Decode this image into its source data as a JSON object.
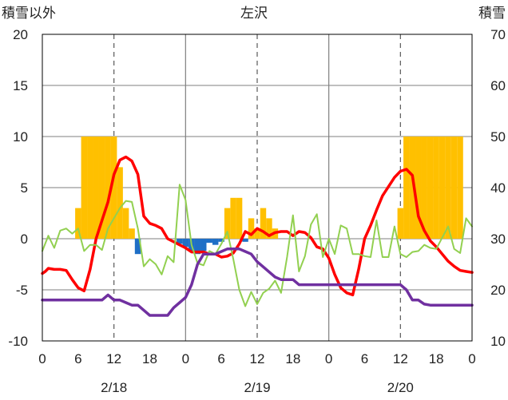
{
  "chart_data": {
    "type": "line",
    "title": "左沢",
    "ylabel_left": "積雪以外",
    "ylabel_right": "積雪",
    "ylim_left": [
      -10,
      20
    ],
    "ylim_right": [
      10,
      70
    ],
    "yticks_left": [
      "-10",
      "-5",
      "0",
      "5",
      "10",
      "15",
      "20"
    ],
    "yticks_right": [
      "10",
      "20",
      "30",
      "40",
      "50",
      "60",
      "70"
    ],
    "xlim_hours": [
      0,
      72
    ],
    "xticks": [
      "0",
      "6",
      "12",
      "18",
      "0",
      "6",
      "12",
      "18",
      "0",
      "6",
      "12",
      "18",
      "0"
    ],
    "day_labels": [
      "2/18",
      "2/19",
      "2/20"
    ],
    "grid": "dashed at 12:00 of each day, solid at day boundaries, solid horizontal lines at left-axis values 15, 10, 5, 0, -5",
    "colors": {
      "precip_positive": "#ffc000",
      "precip_negative": "#1f6fc6",
      "temperature": "#ff0000",
      "dew_point": "#92d050",
      "snow_depth": "#7030a0"
    },
    "series": [
      {
        "color_key": "precip_positive",
        "kind": "bar",
        "axis": "left",
        "x": [
          6,
          7,
          8,
          9,
          10,
          11,
          12,
          13,
          14,
          15,
          31,
          32,
          33,
          35,
          36,
          37,
          38,
          39,
          60,
          61,
          62,
          63,
          64,
          65,
          66,
          67,
          68,
          69,
          70
        ],
        "values": [
          3,
          10,
          10,
          10,
          10,
          10,
          10,
          7,
          3,
          1,
          3,
          4,
          4,
          2,
          1,
          3,
          2,
          1,
          3,
          10,
          10,
          10,
          10,
          10,
          10,
          10,
          10,
          10,
          10
        ]
      },
      {
        "color_key": "precip_negative",
        "kind": "bar",
        "axis": "left",
        "x": [
          16,
          23,
          24,
          25,
          26,
          27,
          28,
          29,
          30,
          34
        ],
        "values": [
          -1.5,
          -0.5,
          -0.8,
          -1.2,
          -1.5,
          -1.2,
          -0.4,
          -0.6,
          -0.3,
          -0.3
        ]
      },
      {
        "color_key": "temperature",
        "kind": "line",
        "axis": "left",
        "x": [
          0,
          0.5,
          1,
          2,
          3,
          4,
          5,
          6,
          7,
          8,
          9,
          10,
          11,
          12,
          13,
          14,
          15,
          16,
          17,
          18,
          19,
          20,
          21,
          22,
          23,
          24,
          25,
          26,
          27,
          28,
          29,
          30,
          31,
          32,
          33,
          34,
          35,
          36,
          37,
          38,
          39,
          40,
          41,
          42,
          43,
          44,
          45,
          46,
          47,
          48,
          49,
          50,
          51,
          52,
          53,
          54,
          55,
          56,
          57,
          58,
          59,
          60,
          61,
          62,
          63,
          64,
          65,
          66,
          67,
          68,
          69,
          70,
          71,
          72
        ],
        "values": [
          -3.4,
          -3.2,
          -2.9,
          -3.0,
          -3.0,
          -3.1,
          -4.0,
          -4.8,
          -5.1,
          -3.0,
          0.0,
          1.8,
          3.6,
          6.3,
          7.7,
          8.0,
          7.6,
          6.3,
          2.2,
          1.5,
          1.3,
          1.0,
          0.0,
          -0.3,
          -0.6,
          -0.9,
          -1.3,
          -1.3,
          -1.3,
          -1.5,
          -1.5,
          -1.8,
          -1.7,
          -1.4,
          -0.5,
          0.7,
          0.4,
          1.0,
          0.7,
          0.3,
          0.6,
          0.7,
          0.7,
          0.3,
          0.7,
          0.6,
          0.1,
          -0.8,
          -1.0,
          -1.9,
          -3.5,
          -4.8,
          -5.3,
          -5.5,
          -3.0,
          0.0,
          1.3,
          2.8,
          4.2,
          5.1,
          6.0,
          6.6,
          6.8,
          6.2,
          2.2,
          0.8,
          -0.2,
          -0.8,
          -1.5,
          -2.2,
          -2.7,
          -3.1,
          -3.2,
          -3.3
        ]
      },
      {
        "color_key": "dew_point",
        "kind": "line",
        "axis": "left",
        "x": [
          0,
          1,
          2,
          3,
          4,
          5,
          6,
          7,
          8,
          9,
          10,
          11,
          12,
          13,
          14,
          15,
          16,
          17,
          18,
          19,
          20,
          21,
          22,
          23,
          24,
          25,
          26,
          27,
          28,
          29,
          30,
          31,
          32,
          33,
          34,
          35,
          36,
          37,
          38,
          39,
          40,
          41,
          42,
          43,
          44,
          45,
          46,
          47,
          48,
          49,
          50,
          51,
          52,
          53,
          54,
          55,
          56,
          57,
          58,
          59,
          60,
          61,
          62,
          63,
          64,
          65,
          66,
          67,
          68,
          69,
          70,
          71,
          72
        ],
        "values": [
          -1.2,
          0.3,
          -0.9,
          0.8,
          1.0,
          0.5,
          1.0,
          -1.2,
          -0.6,
          -0.6,
          -1.1,
          1.0,
          2.0,
          3.0,
          3.7,
          3.6,
          1.0,
          -2.7,
          -2.0,
          -2.5,
          -3.5,
          -1.7,
          -2.3,
          5.3,
          3.8,
          -0.6,
          -2.4,
          -2.6,
          -1.2,
          -1.5,
          -0.5,
          0.7,
          -2.0,
          -5.0,
          -6.6,
          -5.2,
          -6.4,
          -5.3,
          -4.9,
          -4.1,
          -5.3,
          -1.8,
          2.3,
          -3.2,
          -1.7,
          1.4,
          2.4,
          -1.8,
          0.0,
          -1.5,
          1.3,
          1.0,
          -1.5,
          -1.5,
          -1.7,
          -1.8,
          1.8,
          -1.8,
          -1.8,
          1.2,
          -1.5,
          -1.8,
          -1.3,
          -1.2,
          -0.6,
          -0.9,
          -1.0,
          0.1,
          1.2,
          -1.0,
          -1.4,
          2.0,
          1.2
        ]
      },
      {
        "color_key": "snow_depth",
        "kind": "line",
        "axis": "right",
        "x": [
          0,
          6,
          9,
          10,
          11,
          12,
          13,
          14,
          15,
          16,
          17,
          18,
          19,
          20,
          21,
          22,
          23,
          24,
          25,
          26,
          27,
          28,
          29,
          30,
          31,
          32,
          33,
          34,
          35,
          36,
          37,
          38,
          39,
          40,
          41,
          42,
          43,
          44,
          45,
          46,
          47,
          48,
          49,
          50,
          51,
          52,
          53,
          54,
          55,
          56,
          57,
          58,
          59,
          60,
          61,
          62,
          63,
          64,
          65,
          66,
          67,
          68,
          69,
          70,
          71,
          72
        ],
        "values": [
          18,
          18,
          18,
          18,
          19,
          18,
          18,
          17.5,
          17,
          17,
          16,
          15,
          15,
          15,
          15,
          16.5,
          17.5,
          18.5,
          21,
          25,
          27,
          27,
          27,
          27.5,
          28,
          28,
          28,
          27.5,
          27,
          25.5,
          24.5,
          23.5,
          22.5,
          22,
          22,
          22,
          21,
          21,
          21,
          21,
          21,
          21,
          21,
          21,
          21,
          21,
          21,
          21,
          21,
          21,
          21,
          21,
          21,
          21,
          20,
          18,
          18,
          17.2,
          17,
          17,
          17,
          17,
          17,
          17,
          17,
          17
        ]
      }
    ]
  }
}
